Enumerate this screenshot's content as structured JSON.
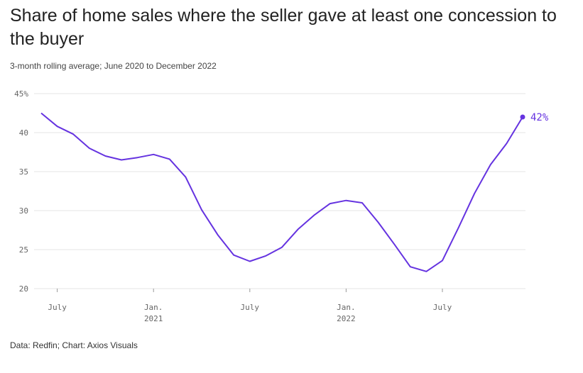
{
  "title": "Share of home sales where the seller gave at least one concession to the buyer",
  "subtitle": "3-month rolling average; June 2020 to December 2022",
  "footer": "Data: Redfin; Chart: Axios Visuals",
  "colors": {
    "line": "#6533e0",
    "grid": "#e6e6e6",
    "tick": "#666666"
  },
  "chart_data": {
    "type": "line",
    "title": "Share of home sales where the seller gave at least one concession to the buyer",
    "subtitle": "3-month rolling average; June 2020 to December 2022",
    "ylim": [
      20,
      45
    ],
    "ytick_labels": [
      "45%",
      "40",
      "35",
      "30",
      "25",
      "20"
    ],
    "ytick_values": [
      45,
      40,
      35,
      30,
      25,
      20
    ],
    "xtick_labels": [
      {
        "line1": "July",
        "line2": "",
        "index": 1
      },
      {
        "line1": "Jan.",
        "line2": "2021",
        "index": 7
      },
      {
        "line1": "July",
        "line2": "",
        "index": 13
      },
      {
        "line1": "Jan.",
        "line2": "2022",
        "index": 19
      },
      {
        "line1": "July",
        "line2": "",
        "index": 25
      }
    ],
    "grid": true,
    "x": [
      "2020-06",
      "2020-07",
      "2020-08",
      "2020-09",
      "2020-10",
      "2020-11",
      "2020-12",
      "2021-01",
      "2021-02",
      "2021-03",
      "2021-04",
      "2021-05",
      "2021-06",
      "2021-07",
      "2021-08",
      "2021-09",
      "2021-10",
      "2021-11",
      "2021-12",
      "2022-01",
      "2022-02",
      "2022-03",
      "2022-04",
      "2022-05",
      "2022-06",
      "2022-07",
      "2022-08",
      "2022-09",
      "2022-10",
      "2022-11",
      "2022-12"
    ],
    "values": [
      42.5,
      40.8,
      39.8,
      38.0,
      37.0,
      36.5,
      36.8,
      37.2,
      36.6,
      34.3,
      30.1,
      26.9,
      24.3,
      23.5,
      24.2,
      25.3,
      27.6,
      29.4,
      30.9,
      31.3,
      31.0,
      28.5,
      25.7,
      22.8,
      22.2,
      23.6,
      27.8,
      32.2,
      35.9,
      38.6,
      42.0
    ],
    "end_label": "42%"
  }
}
